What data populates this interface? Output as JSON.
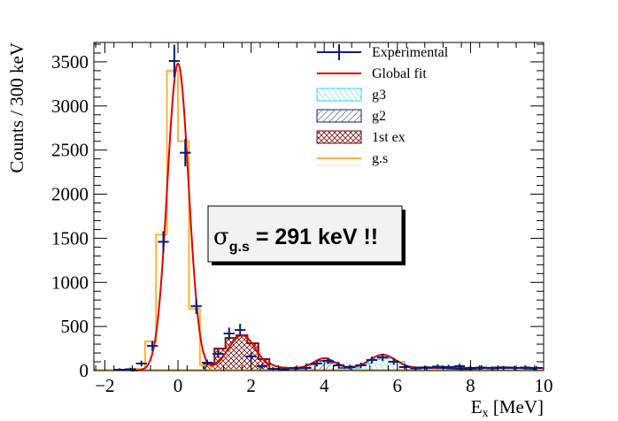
{
  "chart_data": {
    "type": "histogram",
    "xlabel": {
      "main": "E",
      "sub": "x",
      "unit": " [MeV]"
    },
    "ylabel": "Counts / 300 keV",
    "xlim": [
      -2.3,
      10
    ],
    "ylim": [
      0,
      3720
    ],
    "x_ticks": [
      -2,
      0,
      2,
      4,
      6,
      8,
      10
    ],
    "y_ticks": [
      0,
      500,
      1000,
      1500,
      2000,
      2500,
      3000,
      3500
    ],
    "grid": false,
    "legend_position": "top-right",
    "colors": {
      "experimental": "#0a1e78",
      "fit": "#e00000",
      "g3": "#33ccff",
      "g2": "#0a1e78",
      "first_ex": "#7a0f0f",
      "gs": "#ffb432"
    },
    "legend": [
      {
        "key": "experimental",
        "label": "Experimental"
      },
      {
        "key": "fit",
        "label": "Global fit"
      },
      {
        "key": "g3",
        "label": "g3"
      },
      {
        "key": "g2",
        "label": "g2"
      },
      {
        "key": "first_ex",
        "label": "1st ex"
      },
      {
        "key": "gs",
        "label": "g.s"
      }
    ],
    "annotation": {
      "symbol": "σ",
      "subscript": "g.s",
      "text": " = 291 keV !!"
    },
    "experimental": {
      "x": [
        -1.6,
        -1.3,
        -1.0,
        -0.7,
        -0.4,
        -0.1,
        0.2,
        0.5,
        0.8,
        1.1,
        1.4,
        1.7,
        2.0,
        2.3,
        2.6,
        2.9,
        3.2,
        3.5,
        3.8,
        4.1,
        4.4,
        4.7,
        5.0,
        5.3,
        5.6,
        5.9,
        6.2,
        6.5,
        6.8,
        7.1,
        7.4,
        7.7,
        8.0,
        8.3,
        8.6,
        8.9,
        9.2,
        9.5,
        9.8
      ],
      "y": [
        10,
        15,
        80,
        280,
        1460,
        3510,
        2470,
        730,
        90,
        190,
        420,
        460,
        160,
        50,
        20,
        15,
        25,
        30,
        80,
        110,
        60,
        40,
        60,
        120,
        150,
        100,
        40,
        25,
        30,
        45,
        40,
        50,
        30,
        35,
        25,
        30,
        30,
        35,
        30
      ],
      "xerr": 0.15
    },
    "global_fit": {
      "components": [
        {
          "mu": 0.0,
          "sigma": 0.291,
          "amp": 3480
        },
        {
          "mu": 1.75,
          "sigma": 0.38,
          "amp": 400
        },
        {
          "mu": 4.0,
          "sigma": 0.28,
          "amp": 110
        },
        {
          "mu": 5.6,
          "sigma": 0.35,
          "amp": 150
        }
      ],
      "baseline": 30,
      "baseline_start": 2.5
    },
    "gs_hist": {
      "edges": [
        -1.2,
        -0.9,
        -0.6,
        -0.3,
        0.0,
        0.3,
        0.6,
        0.9,
        1.2
      ],
      "values": [
        20,
        330,
        1540,
        3400,
        2600,
        700,
        60,
        5
      ]
    },
    "first_ex_hist": {
      "edges": [
        0.7,
        1.0,
        1.3,
        1.6,
        1.9,
        2.2,
        2.5,
        2.8
      ],
      "values": [
        80,
        250,
        370,
        400,
        310,
        130,
        20
      ]
    },
    "g2_hist": {
      "edges": [
        3.2,
        3.5,
        3.8,
        4.1,
        4.4,
        4.7
      ],
      "values": [
        20,
        70,
        110,
        90,
        30
      ]
    },
    "g3_hist": {
      "edges": [
        4.7,
        5.0,
        5.3,
        5.6,
        5.9,
        6.2,
        6.5
      ],
      "values": [
        30,
        80,
        130,
        140,
        100,
        40
      ]
    }
  }
}
